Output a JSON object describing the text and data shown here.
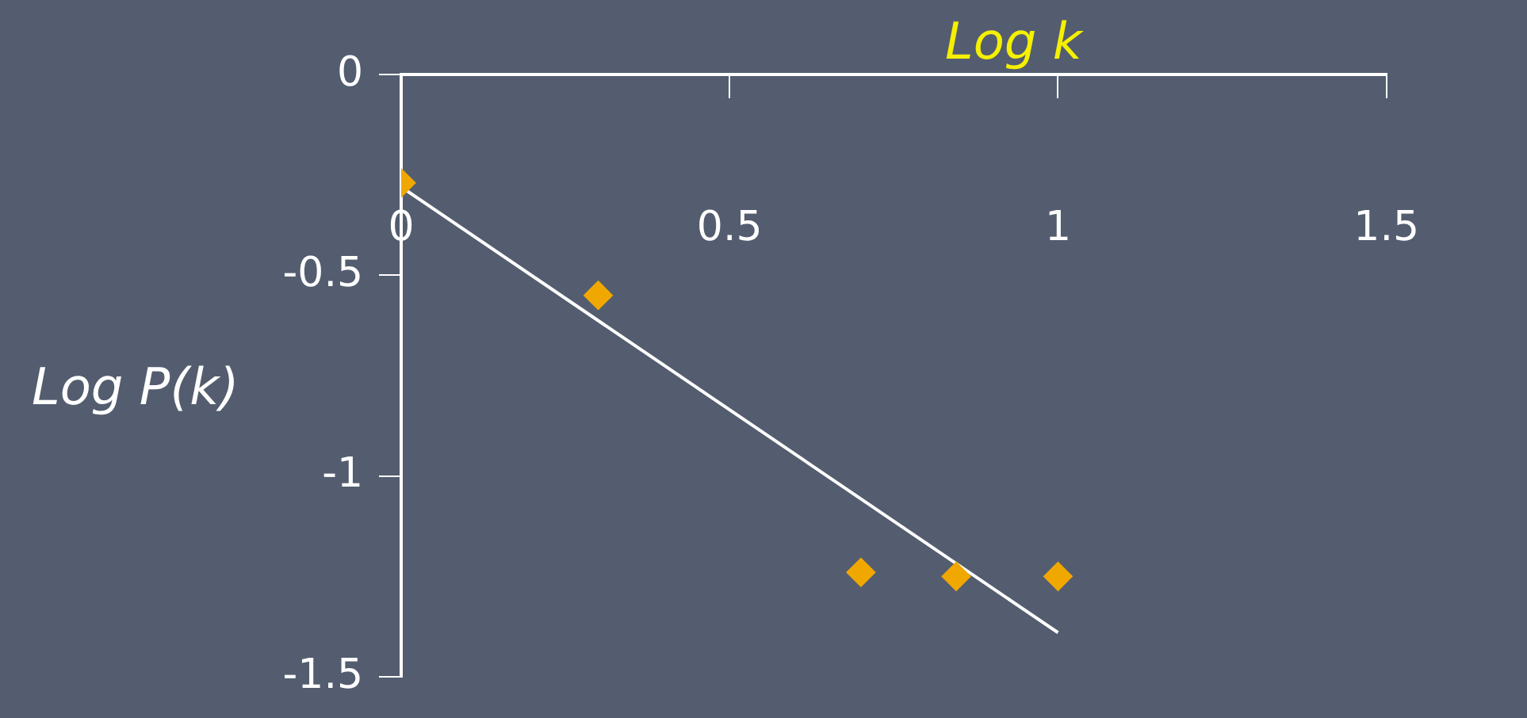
{
  "chart_data": {
    "type": "scatter",
    "xlabel": "Log k",
    "ylabel": "Log P(k)",
    "xlim": [
      0,
      1.5
    ],
    "xticks": [
      0,
      0.5,
      1,
      1.5
    ],
    "ylim": [
      -1.5,
      0
    ],
    "yticks": [
      0,
      -0.5,
      -1,
      -1.5
    ],
    "grid": false,
    "legend": false,
    "marker": "diamond",
    "series": [
      {
        "type": "scatter",
        "color": "#f0a800",
        "x": [
          0,
          0.3,
          0.7,
          0.845,
          1
        ],
        "values": [
          -0.27,
          -0.55,
          -1.24,
          -1.25,
          -1.25
        ]
      },
      {
        "type": "line",
        "color": "#ffffff",
        "x": [
          0,
          1
        ],
        "values": [
          -0.28,
          -1.39
        ],
        "marker": "none",
        "line_style": "solid"
      }
    ]
  }
}
